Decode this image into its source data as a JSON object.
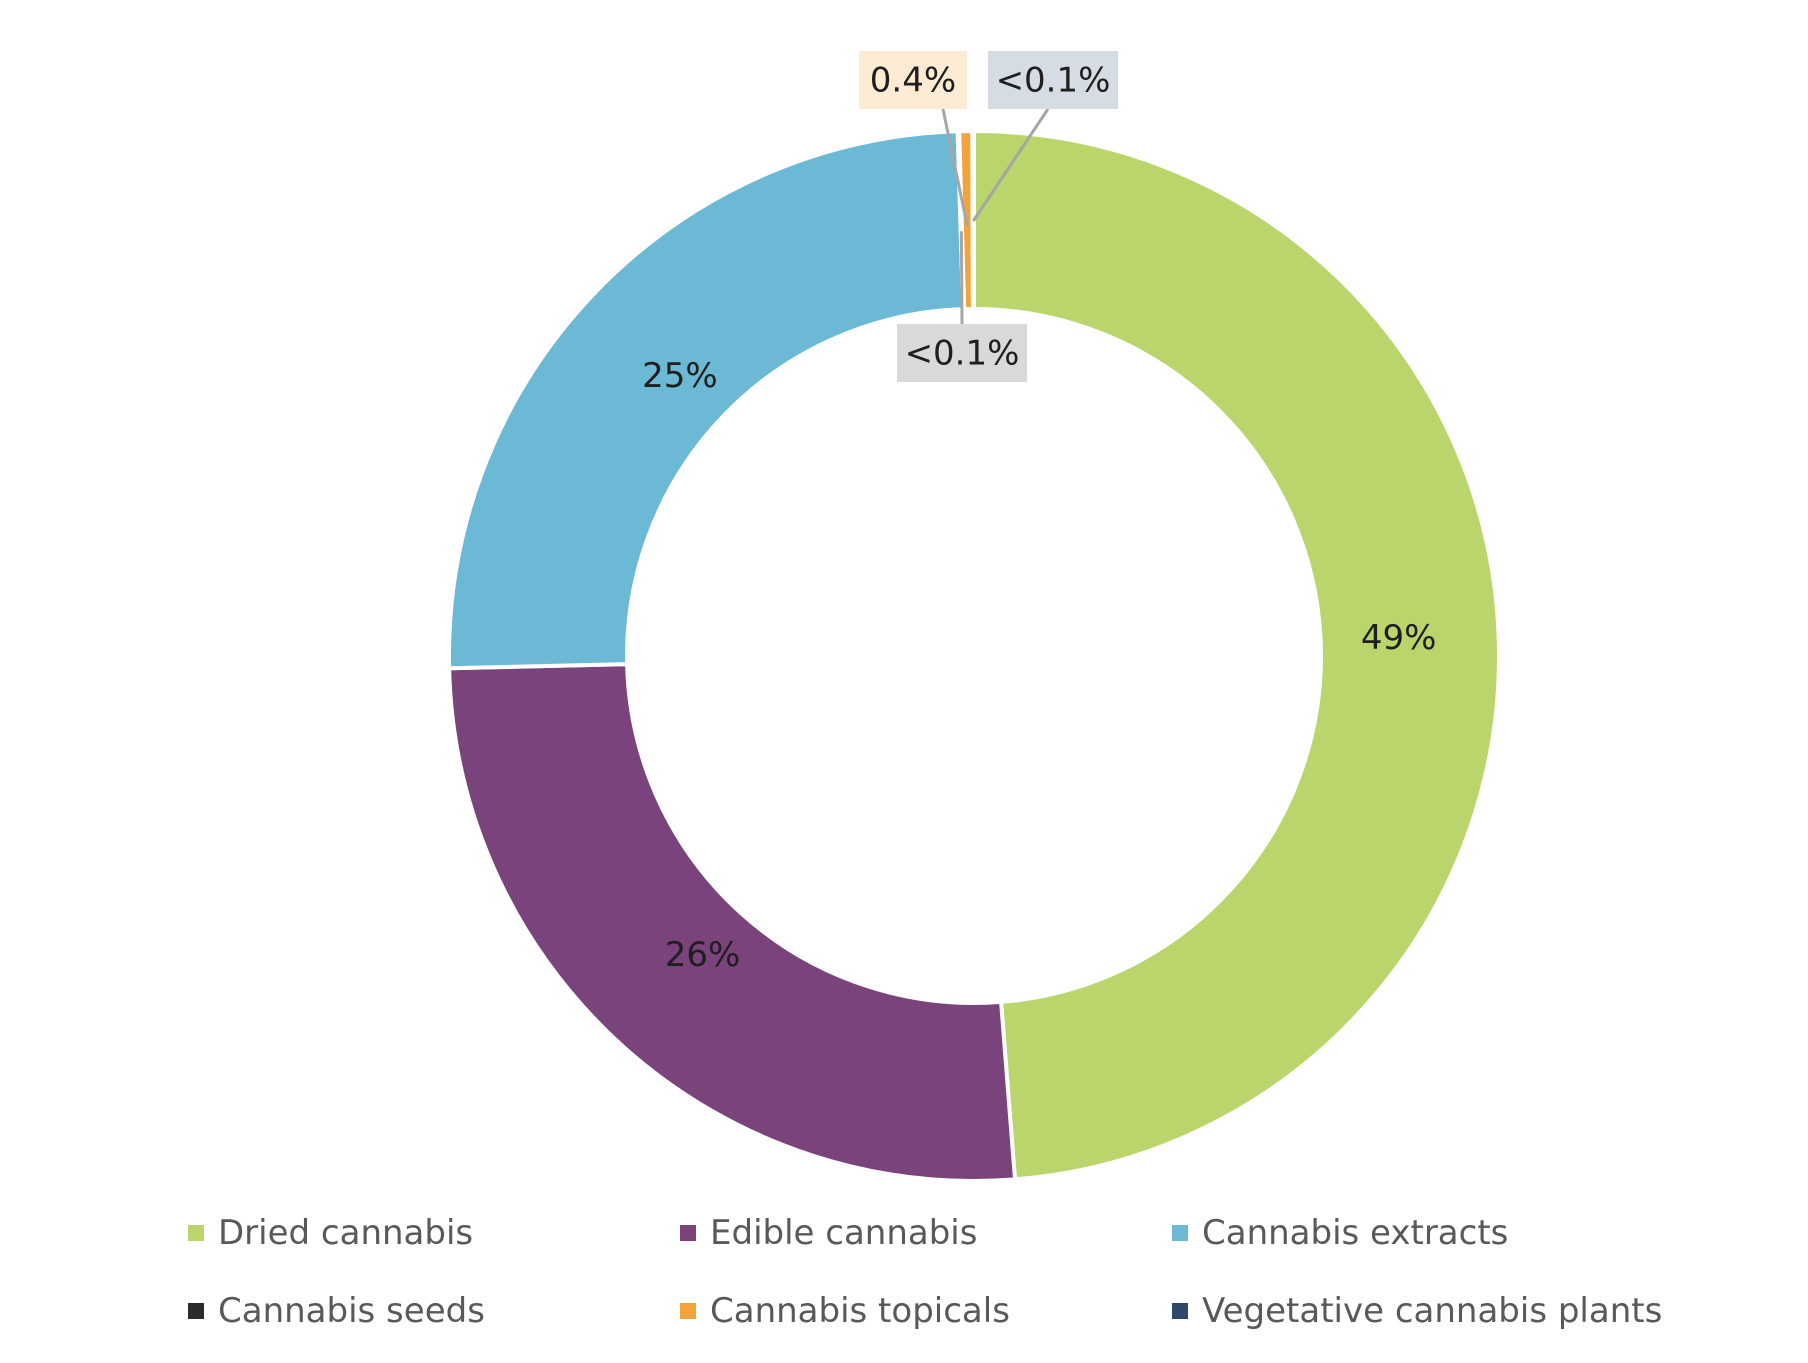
{
  "chart_data": {
    "type": "pie",
    "variant": "donut",
    "categories": [
      "Dried cannabis",
      "Edible cannabis",
      "Cannabis extracts",
      "Cannabis seeds",
      "Cannabis topicals",
      "Vegetative cannabis plants"
    ],
    "values": [
      49,
      26,
      25,
      0.05,
      0.4,
      0.05
    ],
    "data_labels": [
      "49%",
      "26%",
      "25%",
      "<0.1%",
      "0.4%",
      "<0.1%"
    ],
    "colors": [
      "#bad56b",
      "#7b437b",
      "#6bb9d5",
      "#2b2b2b",
      "#f2a43a",
      "#2e4a6b"
    ],
    "label_box_colors": {
      "Cannabis seeds": "#d9d9d9",
      "Cannabis topicals": "#fdebd3",
      "Vegetative cannabis plants": "#d6dce4"
    },
    "legend_position": "bottom",
    "title": "",
    "xlabel": "",
    "ylabel": ""
  }
}
